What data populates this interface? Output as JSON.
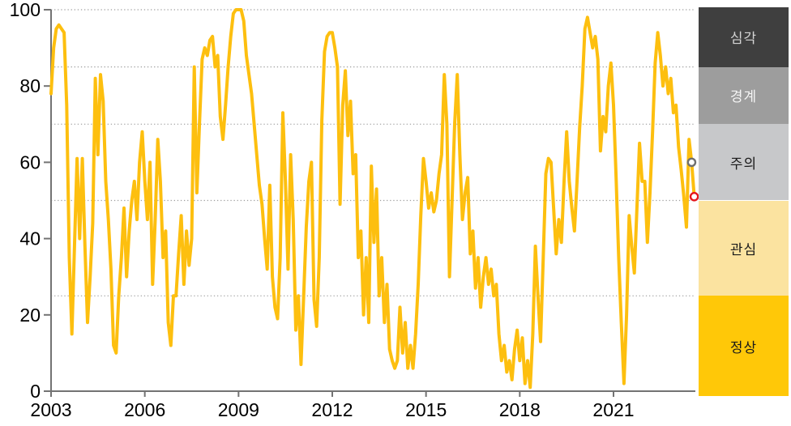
{
  "chart_data": {
    "type": "line",
    "title": "",
    "xlabel": "",
    "ylabel": "",
    "ylim": [
      0,
      100
    ],
    "y_ticks": [
      0,
      20,
      40,
      60,
      80,
      100
    ],
    "x_tick_labels": [
      "2003",
      "2006",
      "2009",
      "2012",
      "2015",
      "2018",
      "2021"
    ],
    "x_years_per_tick": 3,
    "frequency": "monthly",
    "x_start": "2003-01",
    "x_end": "2023-08",
    "grid": "dotted horizontal lines at alert-zone boundaries",
    "gridline_values": [
      25,
      50,
      70,
      85,
      100
    ],
    "legend_position": "right-band",
    "series": [
      {
        "name": "index",
        "color": "#FDBF0F",
        "values": [
          78,
          90,
          95,
          96,
          95,
          94,
          75,
          35,
          15,
          38,
          61,
          40,
          61,
          38,
          18,
          30,
          44,
          82,
          62,
          83,
          76,
          55,
          45,
          32,
          12,
          10,
          25,
          35,
          48,
          30,
          42,
          50,
          55,
          45,
          60,
          68,
          55,
          45,
          60,
          28,
          45,
          66,
          55,
          35,
          42,
          18,
          12,
          25,
          25,
          36,
          46,
          28,
          42,
          33,
          40,
          85,
          52,
          70,
          87,
          90,
          88,
          92,
          93,
          85,
          88,
          72,
          66,
          75,
          85,
          93,
          99,
          100,
          100,
          100,
          97,
          88,
          83,
          78,
          70,
          62,
          54,
          49,
          40,
          32,
          54,
          30,
          22,
          19,
          35,
          73,
          55,
          32,
          62,
          45,
          16,
          25,
          7,
          25,
          43,
          55,
          60,
          24,
          17,
          35,
          71,
          89,
          93,
          94,
          94,
          90,
          85,
          49,
          75,
          84,
          67,
          76,
          57,
          62,
          35,
          42,
          20,
          35,
          18,
          59,
          39,
          53,
          25,
          35,
          18,
          28,
          11,
          8,
          6,
          8,
          22,
          10,
          18,
          6,
          12,
          6,
          15,
          28,
          46,
          61,
          55,
          48,
          52,
          47,
          50,
          57,
          62,
          83,
          70,
          30,
          50,
          70,
          83,
          62,
          45,
          52,
          56,
          36,
          42,
          27,
          35,
          22,
          30,
          35,
          28,
          32,
          25,
          28,
          15,
          8,
          12,
          5,
          8,
          3,
          11,
          16,
          8,
          14,
          2,
          8,
          1,
          15,
          38,
          25,
          13,
          35,
          57,
          61,
          60,
          48,
          36,
          45,
          39,
          55,
          68,
          55,
          48,
          42,
          55,
          69,
          80,
          95,
          98,
          94,
          90,
          93,
          87,
          63,
          72,
          68,
          80,
          86,
          75,
          56,
          35,
          18,
          2,
          20,
          46,
          38,
          31,
          48,
          65,
          55,
          55,
          39,
          52,
          68,
          86,
          94,
          88,
          80,
          85,
          78,
          82,
          73,
          75,
          64,
          58,
          51,
          43,
          66,
          60,
          51
        ]
      }
    ],
    "end_markers": [
      {
        "name": "previous-point-marker",
        "offset_from_end": 2,
        "value": 60,
        "color": "#707070"
      },
      {
        "name": "latest-point-marker",
        "offset_from_end": 1,
        "value": 51,
        "color": "#E4161C"
      }
    ],
    "zones": [
      {
        "key": "severe",
        "label": "심각",
        "range": [
          85,
          100
        ],
        "color": "#3F3F3F",
        "text_color": "#D4D4D4"
      },
      {
        "key": "alert",
        "label": "경계",
        "range": [
          70,
          85
        ],
        "color": "#9D9D9D",
        "text_color": "#F5F5F5"
      },
      {
        "key": "caution",
        "label": "주의",
        "range": [
          50,
          70
        ],
        "color": "#C7C8CA",
        "text_color": "#1A1A1A"
      },
      {
        "key": "attention",
        "label": "관심",
        "range": [
          25,
          50
        ],
        "color": "#FBE3A0",
        "text_color": "#1A1A1A"
      },
      {
        "key": "normal",
        "label": "정상",
        "range": [
          0,
          25
        ],
        "color": "#FFC808",
        "text_color": "#1A1A1A"
      }
    ],
    "style": {
      "axis_color": "#737373",
      "gridline_color": "#9E9E9E",
      "tick_label_color": "#000000"
    }
  }
}
